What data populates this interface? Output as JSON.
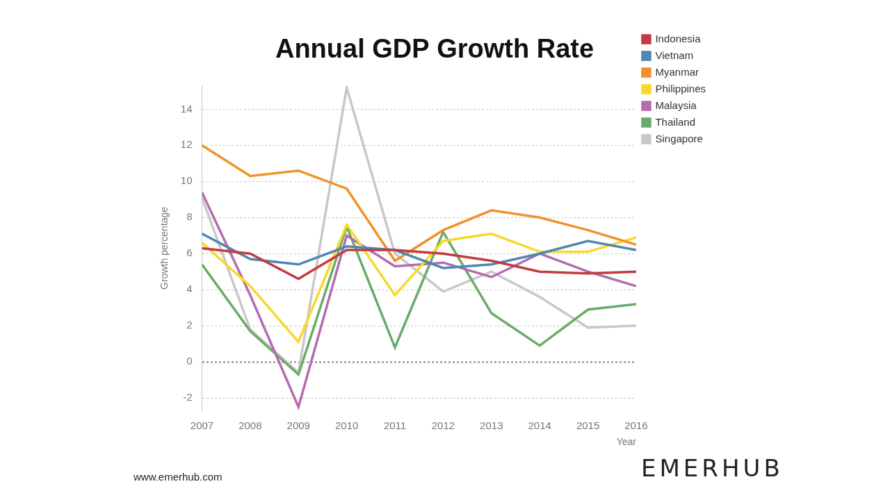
{
  "chart_data": {
    "type": "line",
    "title": "Annual GDP Growth Rate",
    "x_label": "Year",
    "y_label": "Growth percentage",
    "categories": [
      "2007",
      "2008",
      "2009",
      "2010",
      "2011",
      "2012",
      "2013",
      "2014",
      "2015",
      "2016"
    ],
    "series": [
      {
        "name": "Indonesia",
        "color": "#c23b3f",
        "values": [
          6.3,
          6.0,
          4.6,
          6.2,
          6.2,
          6.0,
          5.6,
          5.0,
          4.9,
          5.0
        ]
      },
      {
        "name": "Vietnam",
        "color": "#4f87b2",
        "values": [
          7.1,
          5.7,
          5.4,
          6.4,
          6.2,
          5.2,
          5.4,
          6.0,
          6.7,
          6.2
        ]
      },
      {
        "name": "Myanmar",
        "color": "#f0922b",
        "values": [
          12.0,
          10.3,
          10.6,
          9.6,
          5.6,
          7.3,
          8.4,
          8.0,
          7.3,
          6.5
        ]
      },
      {
        "name": "Philippines",
        "color": "#f7d92a",
        "values": [
          6.6,
          4.2,
          1.1,
          7.6,
          3.7,
          6.7,
          7.1,
          6.1,
          6.1,
          6.9
        ]
      },
      {
        "name": "Malaysia",
        "color": "#b46cb0",
        "values": [
          9.4,
          3.7,
          -2.5,
          7.0,
          5.3,
          5.5,
          4.7,
          6.0,
          5.0,
          4.2
        ]
      },
      {
        "name": "Thailand",
        "color": "#6aab6a",
        "values": [
          5.4,
          1.7,
          -0.7,
          7.5,
          0.8,
          7.2,
          2.7,
          0.9,
          2.9,
          3.2
        ]
      },
      {
        "name": "Singapore",
        "color": "#c8c8c8",
        "values": [
          9.1,
          1.8,
          -0.6,
          15.2,
          6.0,
          3.9,
          5.0,
          3.6,
          1.9,
          2.0
        ]
      }
    ],
    "ylim": [
      -2.7,
      15.3
    ],
    "yticks": [
      -2,
      0,
      2,
      4,
      6,
      8,
      10,
      12,
      14
    ],
    "grid": true,
    "legend": "right",
    "annotations": [
      "www.emerhub.com",
      "EMERHUB"
    ]
  }
}
